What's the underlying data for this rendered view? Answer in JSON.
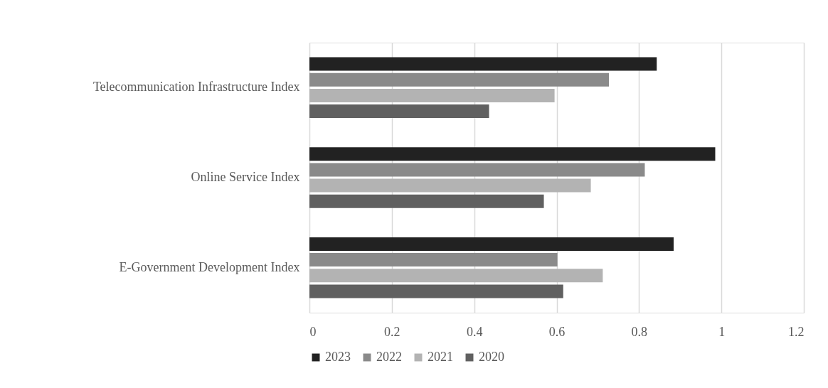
{
  "chart_data": {
    "type": "bar",
    "orientation": "horizontal",
    "categories": [
      "Telecommunication Infrastructure Index",
      "Online Service Index",
      "E-Government Development Index"
    ],
    "series": [
      {
        "name": "2023",
        "color": "#222222",
        "values": [
          0.843,
          0.985,
          0.884
        ]
      },
      {
        "name": "2022",
        "color": "#8a8a8a",
        "values": [
          0.727,
          0.814,
          0.602
        ]
      },
      {
        "name": "2021",
        "color": "#b3b3b3",
        "values": [
          0.595,
          0.683,
          0.712
        ]
      },
      {
        "name": "2020",
        "color": "#606060",
        "values": [
          0.436,
          0.569,
          0.616
        ]
      }
    ],
    "xlim": [
      0,
      1.2
    ],
    "xticks": [
      {
        "value": 0,
        "label": "0"
      },
      0.2,
      0.4,
      0.6,
      0.8,
      {
        "value": 1,
        "label": "1"
      },
      1.2
    ],
    "grid": "x",
    "legend": "bottom"
  }
}
